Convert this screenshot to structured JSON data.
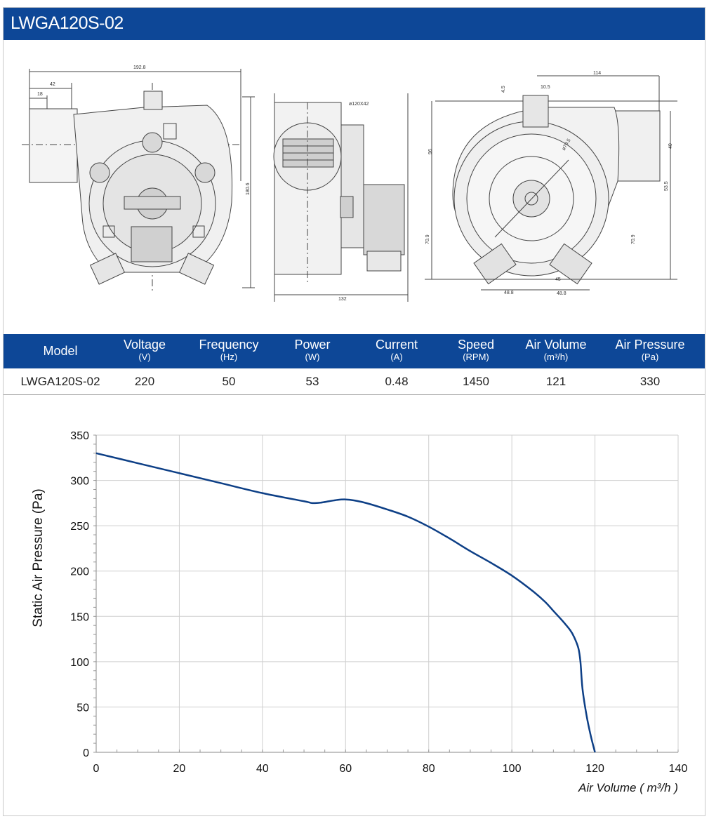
{
  "header": {
    "title": "LWGA120S-02"
  },
  "drawings": {
    "front": {
      "dims": [
        "192.8",
        "42",
        "18",
        "180.6"
      ]
    },
    "side": {
      "dims": [
        "ø120X42",
        "132"
      ]
    },
    "back": {
      "dims": [
        "114",
        "4.5",
        "10.5",
        "96",
        "ø79.5",
        "40",
        "53.5",
        "70.9",
        "70.9",
        "45",
        "48.8",
        "48.8"
      ]
    }
  },
  "spec_table": {
    "columns": [
      {
        "label": "Model",
        "unit": ""
      },
      {
        "label": "Voltage",
        "unit": "(V)"
      },
      {
        "label": "Frequency",
        "unit": "(Hz)"
      },
      {
        "label": "Power",
        "unit": "(W)"
      },
      {
        "label": "Current",
        "unit": "(A)"
      },
      {
        "label": "Speed",
        "unit": "(RPM)"
      },
      {
        "label": "Air Volume",
        "unit": "(m³/h)"
      },
      {
        "label": "Air Pressure",
        "unit": "(Pa)"
      }
    ],
    "row": [
      "LWGA120S-02",
      "220",
      "50",
      "53",
      "0.48",
      "1450",
      "121",
      "330"
    ]
  },
  "chart_data": {
    "type": "line",
    "title": "",
    "xlabel": "Air Volume ( m³/h )",
    "ylabel": "Static Air Pressure  (Pa)",
    "xlim": [
      0,
      140
    ],
    "ylim": [
      0,
      350
    ],
    "xticks": [
      0,
      20,
      40,
      60,
      80,
      100,
      120,
      140
    ],
    "yticks": [
      0,
      50,
      100,
      150,
      200,
      250,
      300,
      350
    ],
    "grid": true,
    "series": [
      {
        "color": "#0d3f86",
        "x": [
          0,
          10,
          20,
          30,
          40,
          50,
          52,
          54,
          56,
          58,
          60,
          62,
          65,
          70,
          75,
          80,
          85,
          90,
          95,
          100,
          105,
          108,
          110,
          112,
          114,
          115,
          116,
          116.5,
          117,
          118,
          119,
          120
        ],
        "y": [
          330,
          319,
          308,
          297,
          286,
          277,
          275,
          275.5,
          277,
          278.5,
          279,
          278,
          275,
          268,
          260,
          249,
          236,
          222,
          209,
          195,
          178,
          166,
          156,
          146,
          135,
          127,
          115,
          100,
          70,
          40,
          18,
          0
        ]
      }
    ]
  }
}
